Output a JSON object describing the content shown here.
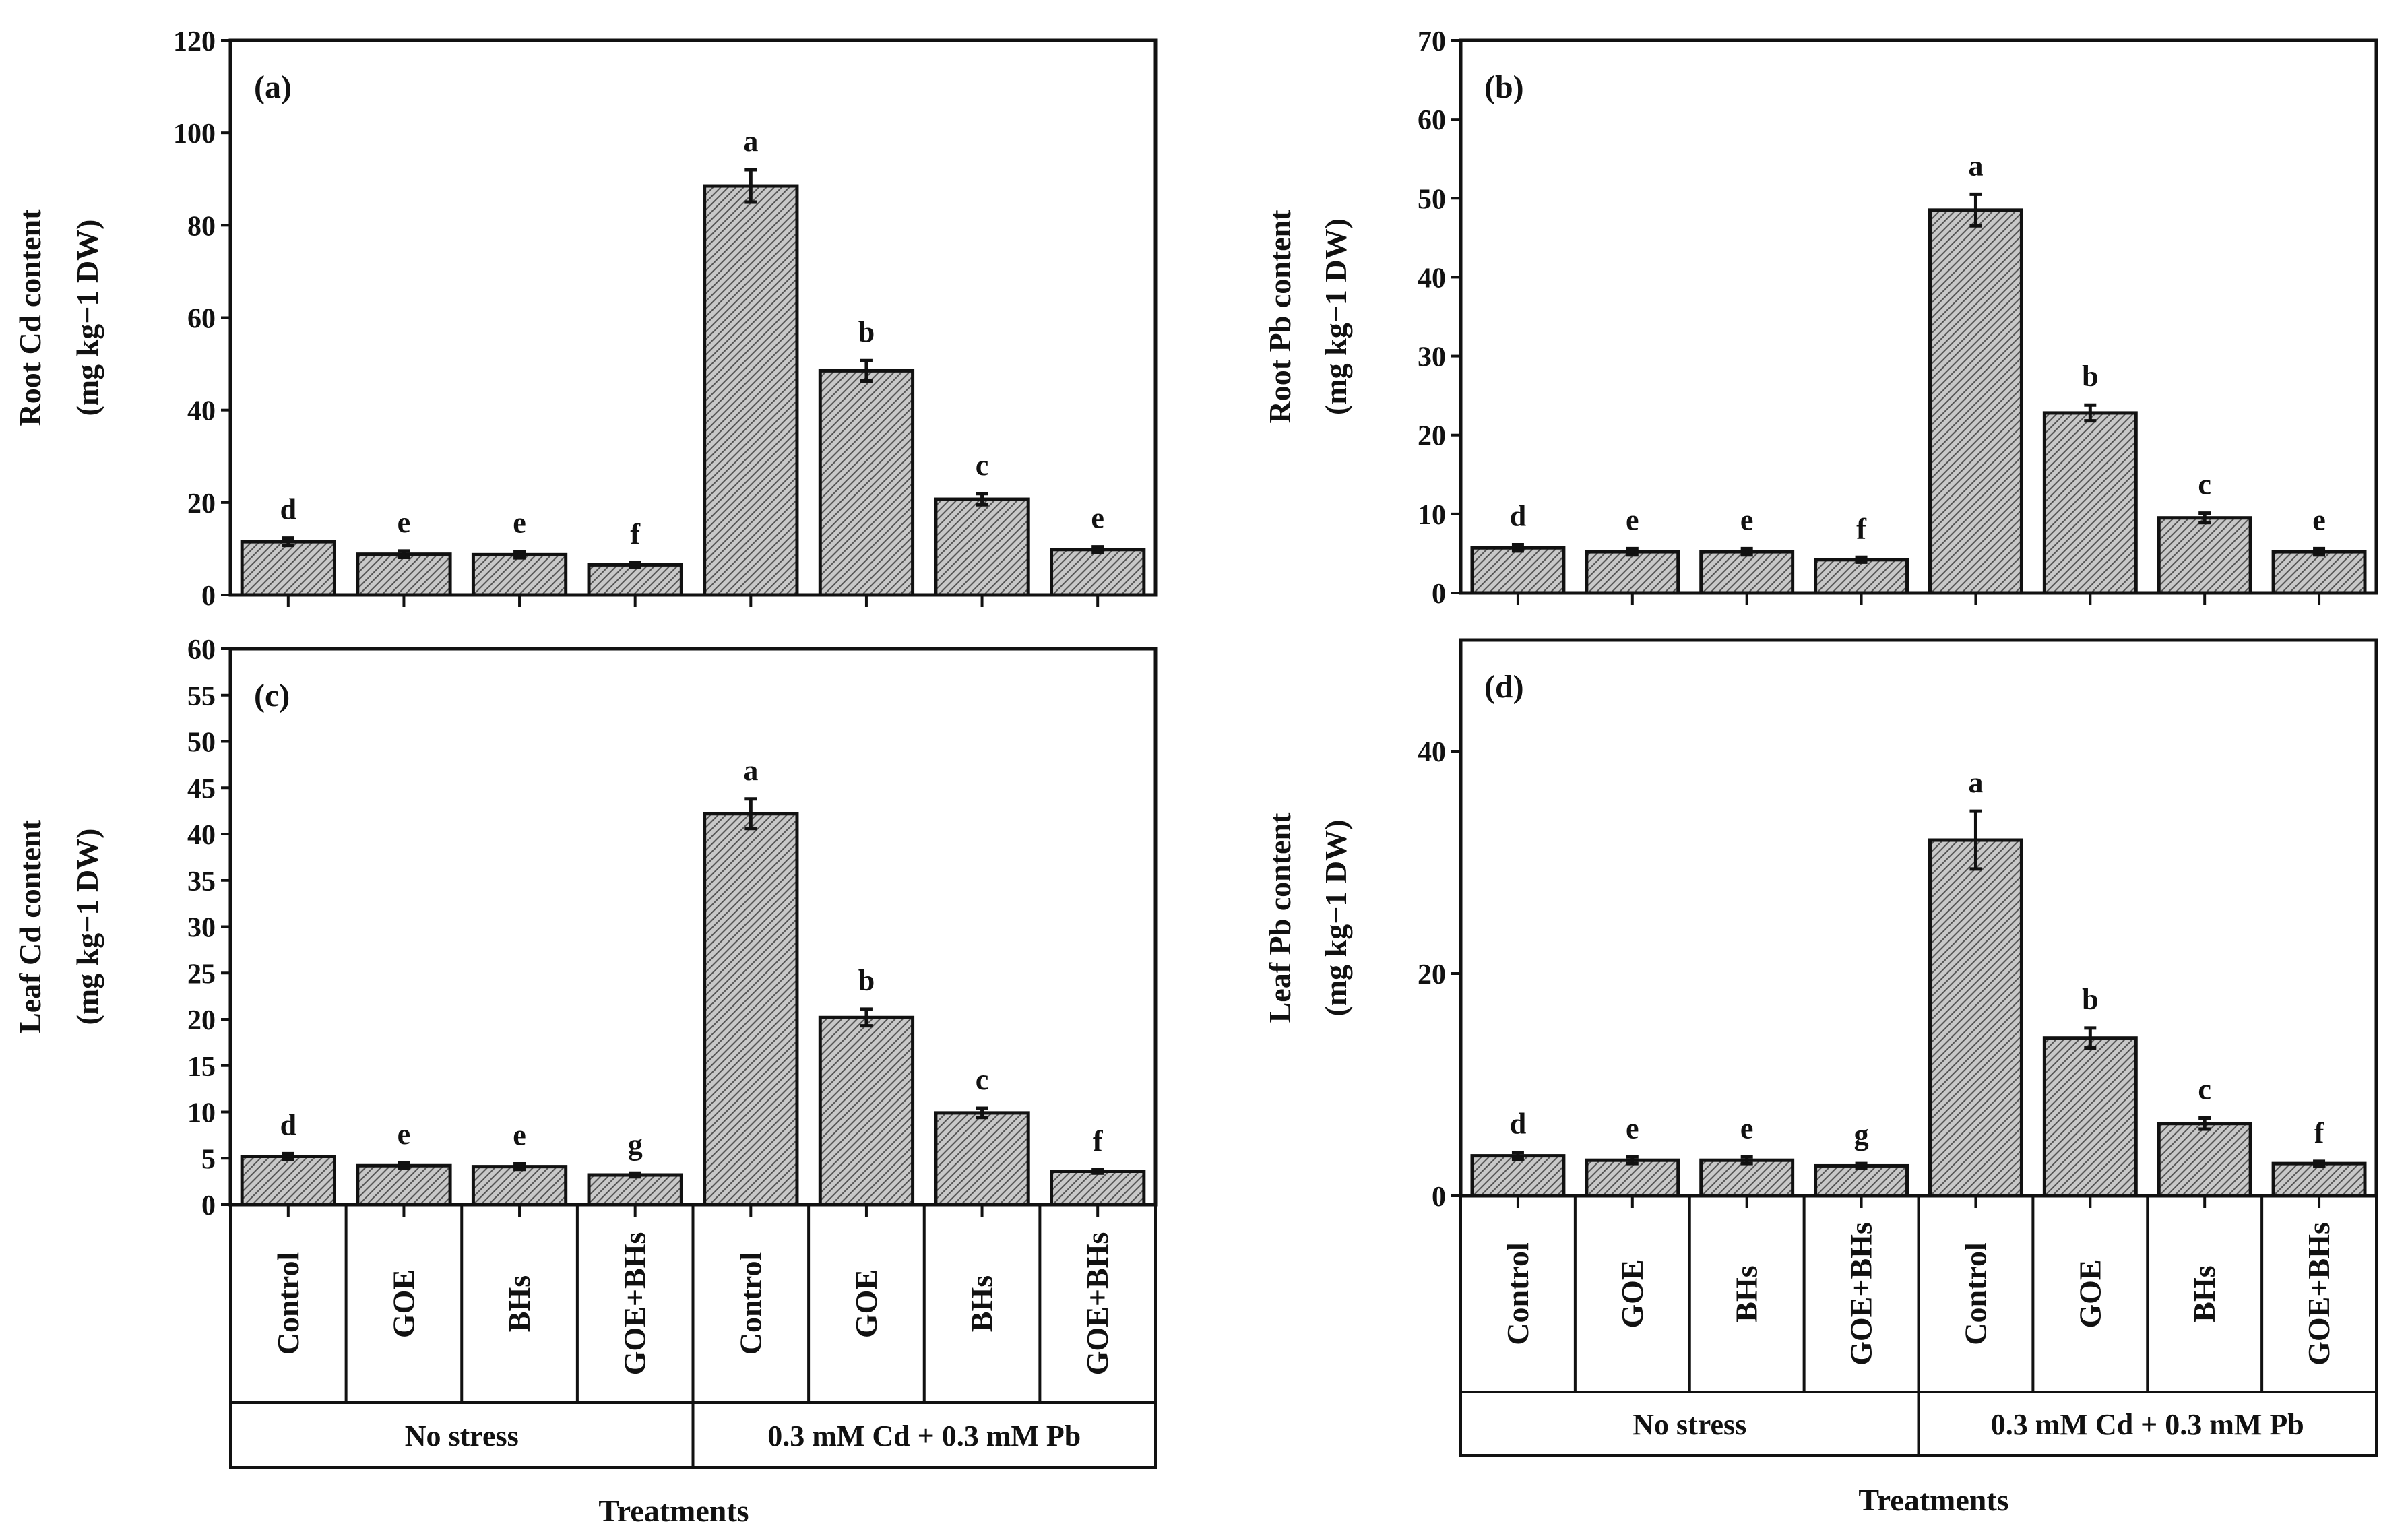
{
  "figure": {
    "xlabel": "Treatments",
    "group_labels": [
      "No stress",
      "0.3 mM Cd + 0.3 mM Pb"
    ],
    "bar_pattern": "hatched-gray",
    "colors": {
      "bar_fill": "#8a8a8a",
      "axis": "#111111",
      "background": "#ffffff"
    }
  },
  "chart_data": [
    {
      "type": "bar",
      "panel": "(a)",
      "ylabel": "Root Cd content",
      "yunit": "(mg kg−1 DW)",
      "ylim": [
        0,
        120
      ],
      "yticks": [
        0,
        20,
        40,
        60,
        80,
        100,
        120
      ],
      "categories": [
        "Control",
        "GOE",
        "BHs",
        "GOE+BHs",
        "Control",
        "GOE",
        "BHs",
        "GOE+BHs"
      ],
      "groups": [
        "No stress",
        "No stress",
        "No stress",
        "No stress",
        "0.3 mM Cd + 0.3 mM Pb",
        "0.3 mM Cd + 0.3 mM Pb",
        "0.3 mM Cd + 0.3 mM Pb",
        "0.3 mM Cd + 0.3 mM Pb"
      ],
      "values": [
        11.5,
        8.8,
        8.7,
        6.5,
        88.5,
        48.5,
        20.7,
        9.8
      ],
      "errors": [
        0.8,
        0.7,
        0.7,
        0.5,
        3.5,
        2.2,
        1.2,
        0.6
      ],
      "letters": [
        "d",
        "e",
        "e",
        "f",
        "a",
        "b",
        "c",
        "e"
      ]
    },
    {
      "type": "bar",
      "panel": "(b)",
      "ylabel": "Root Pb content",
      "yunit": "(mg kg−1 DW)",
      "ylim": [
        0,
        70
      ],
      "yticks": [
        0,
        10,
        20,
        30,
        40,
        50,
        60,
        70
      ],
      "categories": [
        "Control",
        "GOE",
        "BHs",
        "GOE+BHs",
        "Control",
        "GOE",
        "BHs",
        "GOE+BHs"
      ],
      "groups": [
        "No stress",
        "No stress",
        "No stress",
        "No stress",
        "0.3 mM Cd + 0.3 mM Pb",
        "0.3 mM Cd + 0.3 mM Pb",
        "0.3 mM Cd + 0.3 mM Pb",
        "0.3 mM Cd + 0.3 mM Pb"
      ],
      "values": [
        5.7,
        5.2,
        5.2,
        4.2,
        48.5,
        22.8,
        9.5,
        5.2
      ],
      "errors": [
        0.4,
        0.4,
        0.4,
        0.3,
        2.0,
        1.0,
        0.6,
        0.4
      ],
      "letters": [
        "d",
        "e",
        "e",
        "f",
        "a",
        "b",
        "c",
        "e"
      ]
    },
    {
      "type": "bar",
      "panel": "(c)",
      "ylabel": "Leaf Cd content",
      "yunit": "(mg kg−1 DW)",
      "ylim": [
        0,
        60
      ],
      "yticks": [
        0,
        5,
        10,
        15,
        20,
        25,
        30,
        35,
        40,
        45,
        50,
        55,
        60
      ],
      "categories": [
        "Control",
        "GOE",
        "BHs",
        "GOE+BHs",
        "Control",
        "GOE",
        "BHs",
        "GOE+BHs"
      ],
      "groups": [
        "No stress",
        "No stress",
        "No stress",
        "No stress",
        "0.3 mM Cd + 0.3 mM Pb",
        "0.3 mM Cd + 0.3 mM Pb",
        "0.3 mM Cd + 0.3 mM Pb",
        "0.3 mM Cd + 0.3 mM Pb"
      ],
      "values": [
        5.2,
        4.2,
        4.1,
        3.2,
        42.2,
        20.2,
        9.9,
        3.6
      ],
      "errors": [
        0.3,
        0.3,
        0.3,
        0.2,
        1.6,
        0.9,
        0.5,
        0.2
      ],
      "letters": [
        "d",
        "e",
        "e",
        "g",
        "a",
        "b",
        "c",
        "f"
      ]
    },
    {
      "type": "bar",
      "panel": "(d)",
      "ylabel": "Leaf Pb content",
      "yunit": "(mg kg−1 DW)",
      "ylim": [
        0,
        50
      ],
      "yticks": [
        0,
        20,
        40
      ],
      "categories": [
        "Control",
        "GOE",
        "BHs",
        "GOE+BHs",
        "Control",
        "GOE",
        "BHs",
        "GOE+BHs"
      ],
      "groups": [
        "No stress",
        "No stress",
        "No stress",
        "No stress",
        "0.3 mM Cd + 0.3 mM Pb",
        "0.3 mM Cd + 0.3 mM Pb",
        "0.3 mM Cd + 0.3 mM Pb",
        "0.3 mM Cd + 0.3 mM Pb"
      ],
      "values": [
        3.6,
        3.2,
        3.2,
        2.7,
        32.0,
        14.2,
        6.5,
        2.9
      ],
      "errors": [
        0.3,
        0.3,
        0.3,
        0.2,
        2.6,
        0.9,
        0.5,
        0.2
      ],
      "letters": [
        "d",
        "e",
        "e",
        "g",
        "a",
        "b",
        "c",
        "f"
      ]
    }
  ]
}
